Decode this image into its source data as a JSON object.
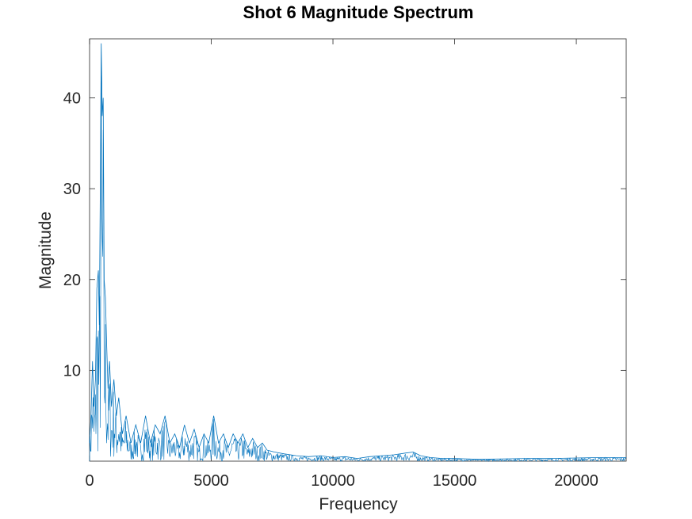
{
  "chart_data": {
    "type": "line",
    "title": "Shot 6 Magnitude Spectrum",
    "xlabel": "Frequency",
    "ylabel": "Magnitude",
    "xlim": [
      0,
      22050
    ],
    "ylim": [
      0,
      46.5
    ],
    "xticks": [
      0,
      5000,
      10000,
      15000,
      20000
    ],
    "xtick_labels": [
      "0",
      "5000",
      "10000",
      "15000",
      "20000"
    ],
    "yticks": [
      10,
      20,
      30,
      40
    ],
    "ytick_labels": [
      "10",
      "20",
      "30",
      "40"
    ],
    "grid": false,
    "line_color": "#0072BD",
    "series": [
      {
        "x": [
          0,
          60,
          120,
          180,
          240,
          300,
          360,
          400,
          440,
          480,
          520,
          560,
          600,
          650,
          700,
          760,
          820,
          900,
          1000,
          1100,
          1200,
          1350,
          1500,
          1700,
          1900,
          2100,
          2300,
          2500,
          2700,
          2900,
          3100,
          3300,
          3500,
          3700,
          3900,
          4100,
          4300,
          4500,
          4700,
          4900,
          5100,
          5300,
          5500,
          5700,
          5900,
          6100,
          6300,
          6500,
          6700,
          6900,
          7100,
          7300,
          7600,
          8000,
          8500,
          9000,
          9500,
          10000,
          10500,
          11000,
          11500,
          12000,
          12500,
          13000,
          13300,
          13600,
          14000,
          14500,
          15000,
          16000,
          17000,
          18000,
          19000,
          20000,
          21000,
          22050
        ],
        "y": [
          2,
          5,
          11,
          6,
          9,
          19,
          21,
          15,
          30,
          46,
          38,
          40,
          20,
          18,
          13,
          8,
          11,
          6,
          9,
          5,
          7,
          3,
          5,
          2,
          4,
          2,
          5,
          2,
          4,
          3,
          5,
          2,
          3,
          1.5,
          4,
          2,
          3.5,
          1.5,
          3,
          2,
          5,
          2,
          3,
          1.5,
          3,
          2,
          3,
          1.5,
          2.5,
          1.5,
          2,
          1.2,
          1,
          0.8,
          0.6,
          0.5,
          0.6,
          0.4,
          0.5,
          0.3,
          0.5,
          0.6,
          0.7,
          0.9,
          1.0,
          0.6,
          0.4,
          0.3,
          0.3,
          0.2,
          0.25,
          0.3,
          0.3,
          0.35,
          0.4,
          0.4
        ]
      }
    ]
  }
}
